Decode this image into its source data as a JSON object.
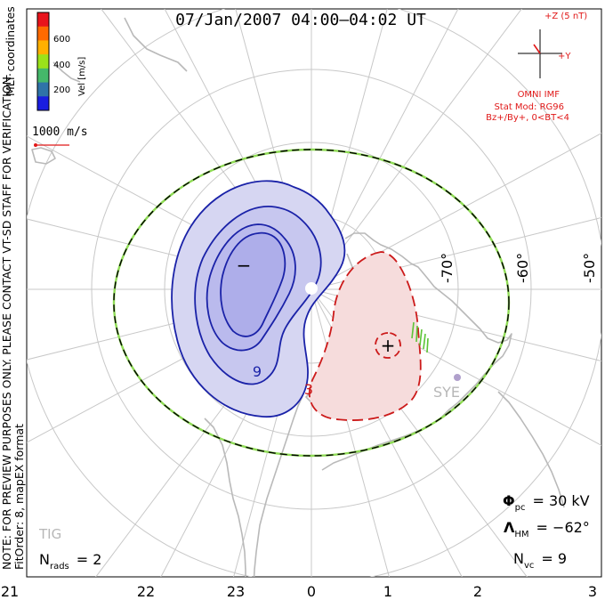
{
  "title": "07/Jan/2007 04:00–04:02 UT",
  "side_note_line1": "NOTE: FOR PREVIEW PURPOSES ONLY. PLEASE CONTACT VT-SD STAFF FOR VERIFICATION.",
  "side_note_line2": "FitOrder: 8, mapEX format",
  "side_note_mlt": "MLT coordinates",
  "colorbar": {
    "label": "Vel [m/s]",
    "ticks": [
      "600",
      "400",
      "200"
    ],
    "colors": [
      "#e8141c",
      "#ff6a00",
      "#ffb000",
      "#9be21a",
      "#45b86a",
      "#2f73a8",
      "#1a1ee0"
    ]
  },
  "velocity_ref": "1000 m/s",
  "imf": {
    "bz_label": "+Z (5 nT)",
    "by_label": "+Y",
    "source": "OMNI IMF",
    "stat_mod": "Stat Mod: RG96",
    "condition": "Bz+/By+, 0<BT<4"
  },
  "lat_labels": [
    "-70°",
    "-60°",
    "-50°"
  ],
  "mlt_ticks": [
    "21",
    "22",
    "23",
    "0",
    "1",
    "2",
    "3"
  ],
  "station_labels": [
    "SYE",
    "TIG"
  ],
  "potential_markers": [
    "−",
    "+"
  ],
  "contour_labels": [
    "9",
    "3"
  ],
  "stats": {
    "phi_pc_symbol": "Φ",
    "phi_pc_sub": "pc",
    "phi_pc_value": "= 30 kV",
    "lambda_hm_symbol": "Λ",
    "lambda_hm_sub": "HM",
    "lambda_hm_value": "= −62°",
    "n_vc_label": "N",
    "n_vc_sub": "vc",
    "n_vc_value": "= 9",
    "n_rads_label": "N",
    "n_rads_sub": "rads",
    "n_rads_value": "= 2"
  },
  "colors": {
    "negative_cell_fill": "#d6d6f2",
    "negative_cell_line": "#1a22a8",
    "positive_cell_fill": "#f6dcdc",
    "positive_cell_line": "#cc1a1a",
    "grid": "#c8c8c8",
    "land": "#b9b9b9",
    "hmb_green": "#8fdc55",
    "label_red": "#e01818"
  }
}
